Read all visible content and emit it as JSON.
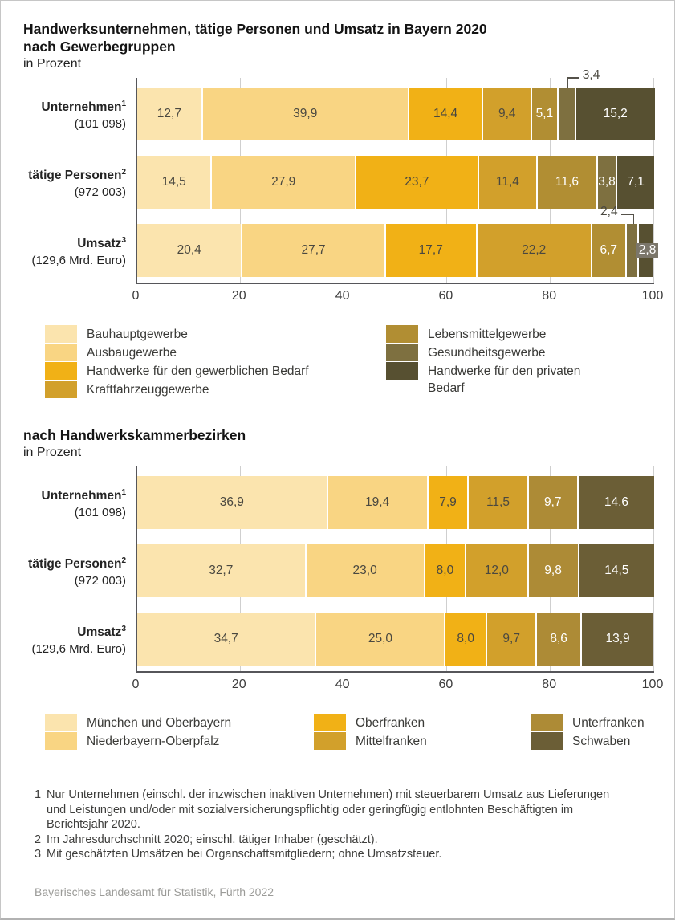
{
  "page": {
    "title_line1": "Handwerksunternehmen, tätige Personen und Umsatz in Bayern 2020",
    "source": "Bayerisches Landesamt für Statistik, Fürth 2022",
    "footnotes": [
      {
        "num": "1",
        "text": "Nur Unternehmen (einschl. der inzwischen inaktiven Unternehmen) mit steuerbarem Umsatz aus Lieferungen und Leistungen und/oder mit sozialversicherungspflichtig oder geringfügig entlohnten Beschäftigten im Berichtsjahr 2020."
      },
      {
        "num": "2",
        "text": "Im Jahresdurchschnitt 2020; einschl. tätiger Inhaber (geschätzt)."
      },
      {
        "num": "3",
        "text": "Mit geschätzten Umsätzen bei Organschaftsmitgliedern; ohne Umsatzsteuer."
      }
    ]
  },
  "chart_data": [
    {
      "type": "bar",
      "stacked": true,
      "orientation": "horizontal",
      "title": "nach Gewerbegruppen",
      "unit": "in Prozent",
      "x_axis": {
        "min": 0,
        "max": 100,
        "ticks": [
          0,
          20,
          40,
          60,
          80,
          100
        ]
      },
      "rows": [
        {
          "label": "Unternehmen",
          "sup": "1",
          "sublabel": "(101 098)"
        },
        {
          "label": "tätige Personen",
          "sup": "2",
          "sublabel": "(972 003)"
        },
        {
          "label": "Umsatz",
          "sup": "3",
          "sublabel": "(129,6 Mrd. Euro)"
        }
      ],
      "series": [
        {
          "name": "Bauhauptgewerbe",
          "color": "#FBE4AE",
          "text": "dark",
          "values": [
            12.7,
            14.5,
            20.4
          ],
          "labels": [
            "12,7",
            "14,5",
            "20,4"
          ]
        },
        {
          "name": "Ausbaugewerbe",
          "color": "#F9D583",
          "text": "dark",
          "values": [
            39.9,
            27.9,
            27.7
          ],
          "labels": [
            "39,9",
            "27,9",
            "27,7"
          ]
        },
        {
          "name": "Handwerke für den gewerblichen Bedarf",
          "color": "#F1B116",
          "text": "dark",
          "values": [
            14.4,
            23.7,
            17.7
          ],
          "labels": [
            "14,4",
            "23,7",
            "17,7"
          ]
        },
        {
          "name": "Kraftfahrzeuggewerbe",
          "color": "#D2A02B",
          "text": "dark",
          "values": [
            9.4,
            11.4,
            22.2
          ],
          "labels": [
            "9,4",
            "11,4",
            "22,2"
          ]
        },
        {
          "name": "Lebensmittelgewerbe",
          "color": "#B18E33",
          "text": "white",
          "values": [
            5.1,
            11.6,
            6.7
          ],
          "labels": [
            "5,1",
            "11,6",
            "6,7"
          ]
        },
        {
          "name": "Gesundheitsgewerbe",
          "color": "#7E7040",
          "text": "white",
          "values": [
            3.4,
            3.8,
            2.4
          ],
          "labels": [
            "3,4",
            "3,8",
            "2,4"
          ]
        },
        {
          "name": "Handwerke für den privaten Bedarf",
          "color": "#575031",
          "text": "white",
          "values": [
            15.2,
            7.1,
            2.8
          ],
          "labels": [
            "15,2",
            "7,1",
            "2,8"
          ]
        }
      ],
      "callouts": [
        {
          "row": 0,
          "series": 5,
          "dir": "right"
        },
        {
          "row": 2,
          "series": 5,
          "dir": "left"
        }
      ],
      "badges": [
        {
          "row": 2,
          "series": 6
        }
      ],
      "legend_columns": [
        [
          0,
          1,
          2,
          3
        ],
        [
          4,
          5,
          6
        ]
      ],
      "legend_col_widths": [
        425,
        330
      ],
      "legend_label_max": {
        "1": 215
      }
    },
    {
      "type": "bar",
      "stacked": true,
      "orientation": "horizontal",
      "title": "nach Handwerkskammerbezirken",
      "unit": "in Prozent",
      "x_axis": {
        "min": 0,
        "max": 100,
        "ticks": [
          0,
          20,
          40,
          60,
          80,
          100
        ]
      },
      "rows": [
        {
          "label": "Unternehmen",
          "sup": "1",
          "sublabel": "(101 098)"
        },
        {
          "label": "tätige Personen",
          "sup": "2",
          "sublabel": "(972 003)"
        },
        {
          "label": "Umsatz",
          "sup": "3",
          "sublabel": "(129,6 Mrd. Euro)"
        }
      ],
      "series": [
        {
          "name": "München und Oberbayern",
          "color": "#FBE4AE",
          "text": "dark",
          "values": [
            36.9,
            32.7,
            34.7
          ],
          "labels": [
            "36,9",
            "32,7",
            "34,7"
          ]
        },
        {
          "name": "Niederbayern-Oberpfalz",
          "color": "#F9D583",
          "text": "dark",
          "values": [
            19.4,
            23.0,
            25.0
          ],
          "labels": [
            "19,4",
            "23,0",
            "25,0"
          ]
        },
        {
          "name": "Oberfranken",
          "color": "#F1B116",
          "text": "dark",
          "values": [
            7.9,
            8.0,
            8.0
          ],
          "labels": [
            "7,9",
            "8,0",
            "8,0"
          ]
        },
        {
          "name": "Mittelfranken",
          "color": "#D2A02B",
          "text": "dark",
          "values": [
            11.5,
            12.0,
            9.7
          ],
          "labels": [
            "11,5",
            "12,0",
            "9,7"
          ]
        },
        {
          "name": "Unterfranken",
          "color": "#AD8B36",
          "text": "white",
          "values": [
            9.7,
            9.8,
            8.6
          ],
          "labels": [
            "9,7",
            "9,8",
            "8,6"
          ]
        },
        {
          "name": "Schwaben",
          "color": "#6B5E36",
          "text": "white",
          "values": [
            14.6,
            14.5,
            13.9
          ],
          "labels": [
            "14,6",
            "14,5",
            "13,9"
          ]
        }
      ],
      "callouts": [],
      "badges": [],
      "legend_columns": [
        [
          0,
          1
        ],
        [
          2,
          3
        ],
        [
          4,
          5
        ]
      ],
      "legend_col_widths": [
        335,
        270,
        210
      ],
      "legend_label_max": {}
    }
  ]
}
